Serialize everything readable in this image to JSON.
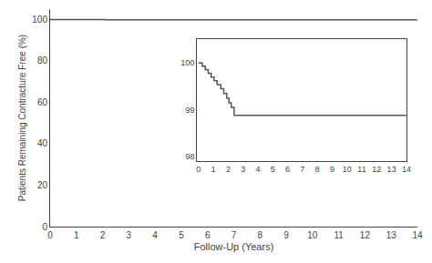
{
  "chart_data": [
    {
      "type": "step",
      "x": [
        0,
        0.3,
        0.5,
        0.7,
        0.9,
        1.1,
        1.3,
        1.5,
        1.7,
        1.9,
        2.1,
        2.3,
        2.5,
        14.0
      ],
      "values": [
        100,
        99.98,
        99.97,
        99.96,
        99.95,
        99.94,
        99.93,
        99.92,
        99.91,
        99.9,
        99.88,
        99.86,
        99.84,
        99.62
      ],
      "color": "#555555",
      "xlabel": "Follow-Up (Years)",
      "ylabel": "Patients Remaining Contracture Free (%)",
      "xlim": [
        0,
        14
      ],
      "ylim": [
        0,
        105
      ],
      "xticks": [
        0,
        1,
        2,
        3,
        4,
        5,
        6,
        7,
        8,
        9,
        10,
        11,
        12,
        13,
        14
      ],
      "yticks": [
        0,
        20,
        40,
        60,
        80,
        100
      ],
      "grid": false
    },
    {
      "type": "step",
      "x": [
        0,
        0.25,
        0.45,
        0.65,
        0.85,
        1.05,
        1.25,
        1.5,
        1.7,
        1.9,
        2.05,
        2.2,
        2.4,
        14.0
      ],
      "values": [
        100.0,
        99.93,
        99.86,
        99.78,
        99.7,
        99.62,
        99.54,
        99.45,
        99.35,
        99.25,
        99.15,
        99.05,
        98.88,
        98.88
      ],
      "color": "#555555",
      "xlim": [
        -0.1,
        14
      ],
      "ylim": [
        97.9,
        100.5
      ],
      "xticks": [
        0,
        1,
        2,
        3,
        4,
        5,
        6,
        7,
        8,
        9,
        10,
        11,
        12,
        13,
        14
      ],
      "yticks": [
        98,
        99,
        100
      ],
      "grid": false
    }
  ]
}
